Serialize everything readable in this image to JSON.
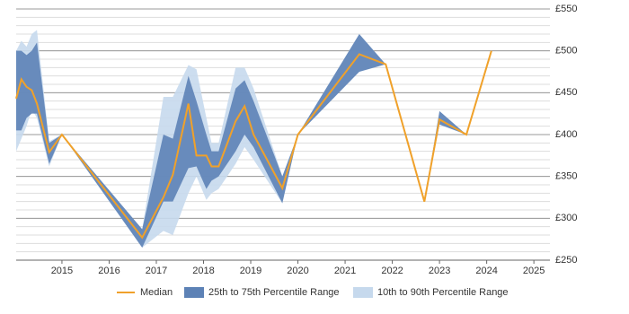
{
  "chart_data": {
    "type": "line-band",
    "x": [
      2014.03,
      2014.14,
      2014.25,
      2014.36,
      2014.47,
      2014.73,
      2015.0,
      2016.7,
      2017.15,
      2017.35,
      2017.68,
      2017.85,
      2018.06,
      2018.17,
      2018.32,
      2018.68,
      2018.87,
      2019.06,
      2019.67,
      2020.0,
      2021.3,
      2021.86,
      2022.68,
      2023.0,
      2023.57,
      2024.1
    ],
    "series": [
      {
        "name": "Median",
        "color": "#f0a12a",
        "kind": "line",
        "values": [
          443,
          466,
          457,
          453,
          437,
          379,
          400,
          277,
          325,
          352,
          437,
          375,
          375,
          362,
          362,
          416,
          434,
          400,
          336,
          400,
          496,
          484,
          320,
          418,
          400,
          500
        ]
      },
      {
        "name": "25th to 75th Percentile Range",
        "color": "#5d82b6",
        "kind": "band",
        "low": [
          405,
          405,
          420,
          425,
          425,
          365,
          400,
          265,
          320,
          320,
          360,
          362,
          335,
          345,
          350,
          380,
          400,
          385,
          318,
          400,
          475,
          484,
          320,
          412,
          400,
          500
        ],
        "high": [
          500,
          500,
          495,
          500,
          510,
          390,
          400,
          287,
          400,
          395,
          470,
          440,
          400,
          380,
          380,
          455,
          465,
          440,
          350,
          400,
          520,
          484,
          320,
          428,
          400,
          500
        ]
      },
      {
        "name": "10th to 90th Percentile Range",
        "color": "#c6d9ed",
        "kind": "band",
        "low": [
          380,
          395,
          410,
          430,
          420,
          362,
          400,
          265,
          285,
          280,
          330,
          350,
          322,
          330,
          335,
          365,
          385,
          370,
          318,
          400,
          475,
          484,
          320,
          412,
          400,
          500
        ],
        "high": [
          500,
          512,
          505,
          520,
          525,
          392,
          400,
          287,
          445,
          445,
          483,
          478,
          420,
          390,
          390,
          480,
          480,
          455,
          350,
          400,
          520,
          484,
          320,
          428,
          400,
          500
        ]
      }
    ],
    "xlim": [
      2014.03,
      2025.34
    ],
    "xticks": [
      2015,
      2016,
      2017,
      2018,
      2019,
      2020,
      2021,
      2022,
      2023,
      2024,
      2025
    ],
    "ylim": [
      250,
      550
    ],
    "yticks": [
      {
        "value": 250,
        "label": "£250"
      },
      {
        "value": 300,
        "label": "£300"
      },
      {
        "value": 350,
        "label": "£350"
      },
      {
        "value": 400,
        "label": "£400"
      },
      {
        "value": 450,
        "label": "£450"
      },
      {
        "value": 500,
        "label": "£500"
      },
      {
        "value": 550,
        "label": "£550"
      }
    ],
    "minor_grid_step": 10,
    "grid": true,
    "legend": "bottom"
  }
}
